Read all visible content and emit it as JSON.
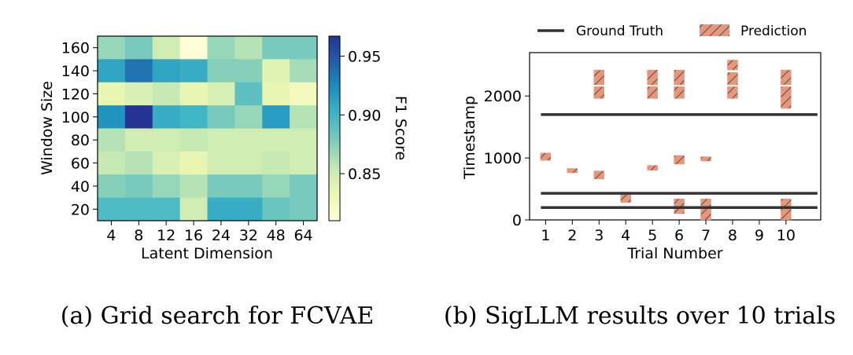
{
  "chart_data": [
    {
      "type": "heatmap",
      "caption": "(a) Grid search for FCVAE",
      "xlabel": "Latent Dimension",
      "ylabel": "Window Size",
      "x_categories": [
        "4",
        "8",
        "12",
        "16",
        "24",
        "32",
        "48",
        "64"
      ],
      "y_categories": [
        "160",
        "140",
        "120",
        "100",
        "80",
        "60",
        "40",
        "20"
      ],
      "colorbar_label": "F1 Score",
      "colorbar_ticks": [
        "0.95",
        "0.90",
        "0.85"
      ],
      "colorbar_tick_values": [
        0.95,
        0.9,
        0.85
      ],
      "vmin": 0.81,
      "vmax": 0.967,
      "colormap": [
        "#ffffd9",
        "#edf8b1",
        "#c7e9b4",
        "#7fcdbb",
        "#41b6c4",
        "#1d91c0",
        "#225ea8",
        "#253494"
      ],
      "values": [
        [
          0.87,
          0.88,
          0.85,
          0.812,
          0.87,
          0.86,
          0.88,
          0.88
        ],
        [
          0.91,
          0.935,
          0.91,
          0.905,
          0.875,
          0.875,
          0.84,
          0.865
        ],
        [
          0.835,
          0.845,
          0.855,
          0.835,
          0.845,
          0.89,
          0.835,
          0.825
        ],
        [
          0.92,
          0.967,
          0.905,
          0.9,
          0.88,
          0.87,
          0.915,
          0.86
        ],
        [
          0.86,
          0.85,
          0.85,
          0.855,
          0.85,
          0.85,
          0.85,
          0.85
        ],
        [
          0.855,
          0.86,
          0.845,
          0.835,
          0.85,
          0.85,
          0.855,
          0.85
        ],
        [
          0.875,
          0.88,
          0.87,
          0.86,
          0.88,
          0.88,
          0.87,
          0.88
        ],
        [
          0.895,
          0.895,
          0.895,
          0.85,
          0.905,
          0.905,
          0.885,
          0.88
        ]
      ]
    },
    {
      "type": "line",
      "caption": "(b) SigLLM results over 10 trials",
      "xlabel": "Trial Number",
      "ylabel": "Timestamp",
      "x_ticks": [
        1,
        2,
        3,
        4,
        5,
        6,
        7,
        8,
        9,
        10
      ],
      "xlim": [
        0.4,
        11.3
      ],
      "y_ticks": [
        0,
        1000,
        2000
      ],
      "ylim": [
        0,
        2700
      ],
      "legend_position": "top",
      "series": [
        {
          "name": "Ground Truth",
          "kind": "horizontal-line",
          "color": "#333333",
          "values": [
            1700,
            430,
            200
          ],
          "x_range": [
            1,
            11
          ]
        },
        {
          "name": "Prediction",
          "kind": "hatched-interval",
          "color": "#e8967a",
          "intervals": [
            {
              "trial": 1,
              "start": 960,
              "end": 1080
            },
            {
              "trial": 2,
              "start": 760,
              "end": 830
            },
            {
              "trial": 3,
              "start": 660,
              "end": 790
            },
            {
              "trial": 3,
              "start": 1960,
              "end": 2150
            },
            {
              "trial": 3,
              "start": 2180,
              "end": 2420
            },
            {
              "trial": 4,
              "start": 280,
              "end": 450
            },
            {
              "trial": 5,
              "start": 800,
              "end": 880
            },
            {
              "trial": 5,
              "start": 1960,
              "end": 2150
            },
            {
              "trial": 5,
              "start": 2180,
              "end": 2420
            },
            {
              "trial": 6,
              "start": 900,
              "end": 1040
            },
            {
              "trial": 6,
              "start": 100,
              "end": 340
            },
            {
              "trial": 6,
              "start": 1960,
              "end": 2150
            },
            {
              "trial": 6,
              "start": 2180,
              "end": 2420
            },
            {
              "trial": 7,
              "start": 950,
              "end": 1020
            },
            {
              "trial": 7,
              "start": 0,
              "end": 340
            },
            {
              "trial": 8,
              "start": 1960,
              "end": 2150
            },
            {
              "trial": 8,
              "start": 2180,
              "end": 2380
            },
            {
              "trial": 8,
              "start": 2420,
              "end": 2580
            },
            {
              "trial": 10,
              "start": 0,
              "end": 340
            },
            {
              "trial": 10,
              "start": 1800,
              "end": 2150
            },
            {
              "trial": 10,
              "start": 2180,
              "end": 2420
            }
          ]
        }
      ]
    }
  ]
}
